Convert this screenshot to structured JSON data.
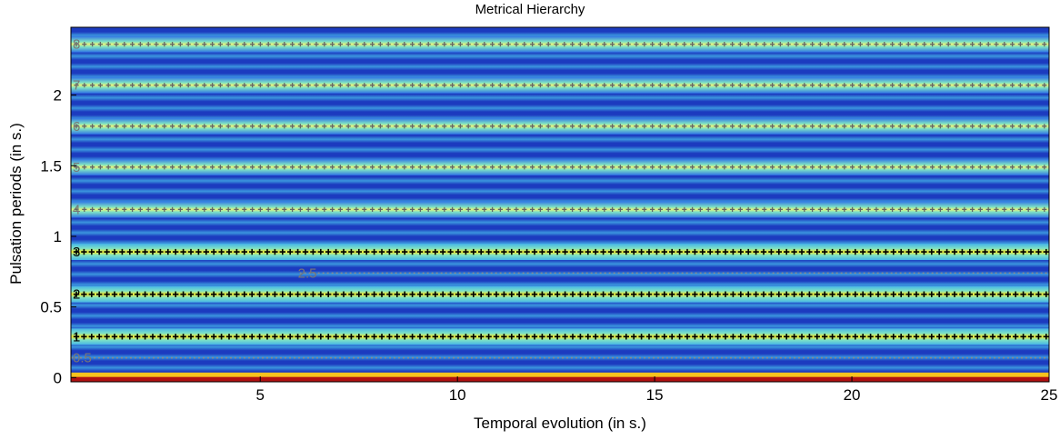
{
  "chart_data": {
    "type": "heatmap",
    "title": "Metrical Hierarchy",
    "xlabel": "Temporal evolution (in s.)",
    "ylabel": "Pulsation periods (in s.)",
    "xlim": [
      0.2,
      25
    ],
    "ylim": [
      -0.03,
      2.48
    ],
    "x_ticks": [
      5,
      10,
      15,
      20,
      25
    ],
    "y_ticks": [
      0,
      0.5,
      1,
      1.5,
      2
    ],
    "x_tick_labels": [
      "5",
      "10",
      "15",
      "20",
      "25"
    ],
    "y_tick_labels": [
      "0",
      "0.5",
      "1",
      "1.5",
      "2"
    ],
    "grid": false,
    "colormap": [
      "#1c3bbf",
      "#2f73e6",
      "#45b4e8",
      "#7fe3c4",
      "#e8f27a",
      "#f5ea2a"
    ],
    "series": [
      {
        "name": "",
        "level_label": "0.5",
        "period": 0.14,
        "marker": "dotted",
        "color": "#8a8a8a",
        "x": [
          0.2,
          25
        ]
      },
      {
        "name": "",
        "level_label": "1",
        "period": 0.29,
        "marker": "+",
        "color": "#000000",
        "x": [
          0.2,
          25
        ]
      },
      {
        "name": "",
        "level_label": "2",
        "period": 0.59,
        "marker": "+",
        "color": "#000000",
        "x": [
          0.2,
          25
        ]
      },
      {
        "name": "",
        "level_label": "2.5",
        "period": 0.74,
        "marker": "dotted",
        "color": "#8a8a8a",
        "x": [
          6,
          25
        ]
      },
      {
        "name": "",
        "level_label": "3",
        "period": 0.89,
        "marker": "+",
        "color": "#000000",
        "x": [
          0.2,
          25
        ]
      },
      {
        "name": "",
        "level_label": "4",
        "period": 1.19,
        "marker": "+",
        "color": "#666666",
        "x": [
          0.2,
          25
        ]
      },
      {
        "name": "",
        "level_label": "5",
        "period": 1.49,
        "marker": "+",
        "color": "#666666",
        "x": [
          0.2,
          25
        ]
      },
      {
        "name": "",
        "level_label": "6",
        "period": 1.78,
        "marker": "+",
        "color": "#666666",
        "x": [
          0.2,
          25
        ]
      },
      {
        "name": "",
        "level_label": "7",
        "period": 2.07,
        "marker": "+",
        "color": "#666666",
        "x": [
          0.2,
          25
        ]
      },
      {
        "name": "",
        "level_label": "8",
        "period": 2.36,
        "marker": "+",
        "color": "#666666",
        "x": [
          0.2,
          25
        ]
      }
    ]
  }
}
